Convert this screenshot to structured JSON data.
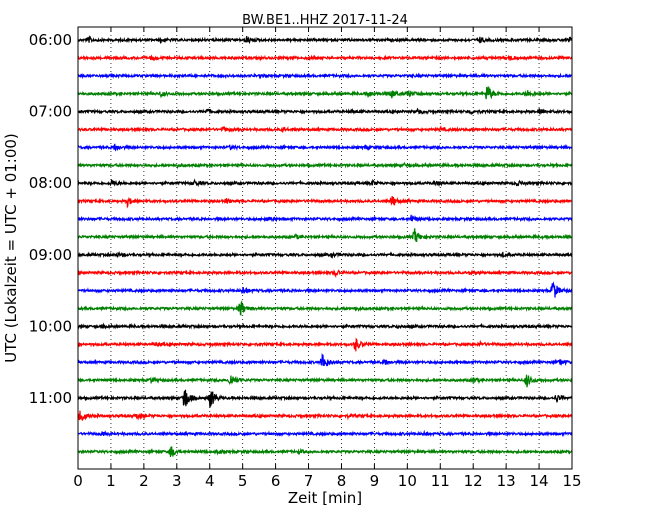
{
  "chart_data": {
    "type": "line",
    "title": "BW.BE1..HHZ 2017-11-24",
    "xlabel": "Zeit  [min]",
    "ylabel": "UTC (Lokalzeit = UTC + 01:00)",
    "xlim": [
      0,
      15
    ],
    "x_ticks": [
      "0",
      "1",
      "2",
      "3",
      "4",
      "5",
      "6",
      "7",
      "8",
      "9",
      "10",
      "11",
      "12",
      "13",
      "14",
      "15"
    ],
    "y_ticks": [
      "06:00",
      "07:00",
      "08:00",
      "09:00",
      "10:00",
      "11:00"
    ],
    "grid": "vertical dotted",
    "colors": [
      "#000000",
      "#ff0000",
      "#0000ff",
      "#008000"
    ],
    "traces": [
      {
        "start": "06:00",
        "color": "#000000",
        "events": [
          {
            "t": 0.3,
            "a": 0.3
          },
          {
            "t": 2.5,
            "a": 0.3
          },
          {
            "t": 5.1,
            "a": 0.4
          },
          {
            "t": 12.2,
            "a": 0.3
          },
          {
            "t": 14.9,
            "a": 0.3
          }
        ]
      },
      {
        "start": "06:15",
        "color": "#ff0000",
        "events": [
          {
            "t": 2.2,
            "a": 0.2
          },
          {
            "t": 7.0,
            "a": 0.2
          },
          {
            "t": 13.1,
            "a": 0.3
          }
        ]
      },
      {
        "start": "06:30",
        "color": "#0000ff",
        "events": [
          {
            "t": 5.5,
            "a": 0.15
          },
          {
            "t": 10.0,
            "a": 0.15
          }
        ]
      },
      {
        "start": "06:45",
        "color": "#008000",
        "events": [
          {
            "t": 2.5,
            "a": 0.3
          },
          {
            "t": 8.8,
            "a": 0.4
          },
          {
            "t": 9.5,
            "a": 0.5
          },
          {
            "t": 10.0,
            "a": 0.4
          },
          {
            "t": 12.4,
            "a": 1.2
          },
          {
            "t": 13.6,
            "a": 0.5
          }
        ]
      },
      {
        "start": "07:00",
        "color": "#000000",
        "events": [
          {
            "t": 3.9,
            "a": 0.3
          },
          {
            "t": 8.3,
            "a": 0.2
          },
          {
            "t": 10.3,
            "a": 0.3
          },
          {
            "t": 11.9,
            "a": 0.3
          },
          {
            "t": 14.0,
            "a": 0.3
          }
        ]
      },
      {
        "start": "07:15",
        "color": "#ff0000",
        "events": [
          {
            "t": 4.4,
            "a": 0.3
          },
          {
            "t": 6.2,
            "a": 0.2
          },
          {
            "t": 11.0,
            "a": 0.2
          }
        ]
      },
      {
        "start": "07:30",
        "color": "#0000ff",
        "events": [
          {
            "t": 1.1,
            "a": 0.4
          },
          {
            "t": 4.6,
            "a": 0.2
          },
          {
            "t": 8.7,
            "a": 0.2
          }
        ]
      },
      {
        "start": "07:45",
        "color": "#008000",
        "events": [
          {
            "t": 3.0,
            "a": 0.15
          },
          {
            "t": 9.9,
            "a": 0.15
          }
        ]
      },
      {
        "start": "08:00",
        "color": "#000000",
        "events": [
          {
            "t": 1.0,
            "a": 0.4
          },
          {
            "t": 3.5,
            "a": 0.4
          },
          {
            "t": 8.9,
            "a": 0.3
          },
          {
            "t": 10.8,
            "a": 0.3
          },
          {
            "t": 13.3,
            "a": 0.3
          }
        ]
      },
      {
        "start": "08:15",
        "color": "#ff0000",
        "events": [
          {
            "t": 1.5,
            "a": 0.5
          },
          {
            "t": 4.5,
            "a": 0.3
          },
          {
            "t": 9.5,
            "a": 0.8
          }
        ]
      },
      {
        "start": "08:30",
        "color": "#0000ff",
        "events": [
          {
            "t": 5.7,
            "a": 0.3
          },
          {
            "t": 10.1,
            "a": 0.5
          }
        ]
      },
      {
        "start": "08:45",
        "color": "#008000",
        "events": [
          {
            "t": 6.6,
            "a": 0.2
          },
          {
            "t": 10.2,
            "a": 1.0
          }
        ]
      },
      {
        "start": "09:00",
        "color": "#000000",
        "events": [
          {
            "t": 1.2,
            "a": 0.2
          },
          {
            "t": 7.7,
            "a": 0.2
          },
          {
            "t": 12.9,
            "a": 0.2
          }
        ]
      },
      {
        "start": "09:15",
        "color": "#ff0000",
        "events": [
          {
            "t": 7.8,
            "a": 0.4
          },
          {
            "t": 11.9,
            "a": 0.3
          }
        ]
      },
      {
        "start": "09:30",
        "color": "#0000ff",
        "events": [
          {
            "t": 5.0,
            "a": 0.5
          },
          {
            "t": 14.4,
            "a": 1.4
          }
        ]
      },
      {
        "start": "09:45",
        "color": "#008000",
        "events": [
          {
            "t": 4.9,
            "a": 1.1
          },
          {
            "t": 8.4,
            "a": 0.2
          }
        ]
      },
      {
        "start": "10:00",
        "color": "#000000",
        "events": [
          {
            "t": 0.7,
            "a": 0.15
          },
          {
            "t": 9.7,
            "a": 0.15
          }
        ]
      },
      {
        "start": "10:15",
        "color": "#ff0000",
        "events": [
          {
            "t": 2.3,
            "a": 0.2
          },
          {
            "t": 8.4,
            "a": 0.9
          },
          {
            "t": 12.2,
            "a": 0.2
          }
        ]
      },
      {
        "start": "10:30",
        "color": "#0000ff",
        "events": [
          {
            "t": 7.4,
            "a": 1.2
          },
          {
            "t": 9.3,
            "a": 0.3
          },
          {
            "t": 14.6,
            "a": 0.4
          }
        ]
      },
      {
        "start": "10:45",
        "color": "#008000",
        "events": [
          {
            "t": 2.2,
            "a": 0.3
          },
          {
            "t": 4.6,
            "a": 0.9
          },
          {
            "t": 12.0,
            "a": 0.3
          },
          {
            "t": 13.6,
            "a": 0.9
          }
        ]
      },
      {
        "start": "11:00",
        "color": "#000000",
        "events": [
          {
            "t": 3.2,
            "a": 1.8
          },
          {
            "t": 4.0,
            "a": 1.3
          },
          {
            "t": 14.5,
            "a": 0.5
          }
        ]
      },
      {
        "start": "11:15",
        "color": "#ff0000",
        "events": [
          {
            "t": 0.05,
            "a": 1.0
          },
          {
            "t": 1.8,
            "a": 0.4
          },
          {
            "t": 8.2,
            "a": 0.2
          }
        ]
      },
      {
        "start": "11:30",
        "color": "#0000ff",
        "events": [
          {
            "t": 0.7,
            "a": 0.2
          },
          {
            "t": 10.5,
            "a": 0.2
          }
        ]
      },
      {
        "start": "11:45",
        "color": "#008000",
        "events": [
          {
            "t": 2.8,
            "a": 0.8
          },
          {
            "t": 4.2,
            "a": 0.3
          },
          {
            "t": 6.7,
            "a": 0.2
          }
        ]
      }
    ]
  }
}
